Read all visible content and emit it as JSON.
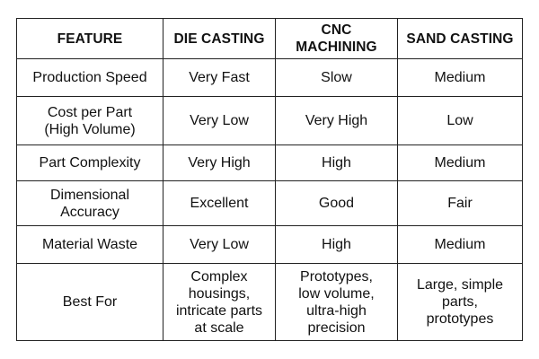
{
  "table": {
    "headers": [
      "FEATURE",
      "DIE CASTING",
      "CNC MACHINING",
      "SAND CASTING"
    ],
    "rows": [
      {
        "feature": "Production Speed",
        "die_casting": "Very Fast",
        "cnc_machining": "Slow",
        "sand_casting": "Medium"
      },
      {
        "feature": "Cost per Part\n(High Volume)",
        "die_casting": "Very Low",
        "cnc_machining": "Very High",
        "sand_casting": "Low"
      },
      {
        "feature": "Part Complexity",
        "die_casting": "Very High",
        "cnc_machining": "High",
        "sand_casting": "Medium"
      },
      {
        "feature": "Dimensional\nAccuracy",
        "die_casting": "Excellent",
        "cnc_machining": "Good",
        "sand_casting": "Fair"
      },
      {
        "feature": "Material Waste",
        "die_casting": "Very Low",
        "cnc_machining": "High",
        "sand_casting": "Medium"
      },
      {
        "feature": "Best For",
        "die_casting": "Complex\nhousings,\nintricate parts\nat scale",
        "cnc_machining": "Prototypes,\nlow volume,\nultra-high\nprecision",
        "sand_casting": "Large, simple\nparts,\nprototypes"
      }
    ]
  },
  "colors": {
    "border": "#222222",
    "text": "#111111",
    "background": "#ffffff"
  }
}
